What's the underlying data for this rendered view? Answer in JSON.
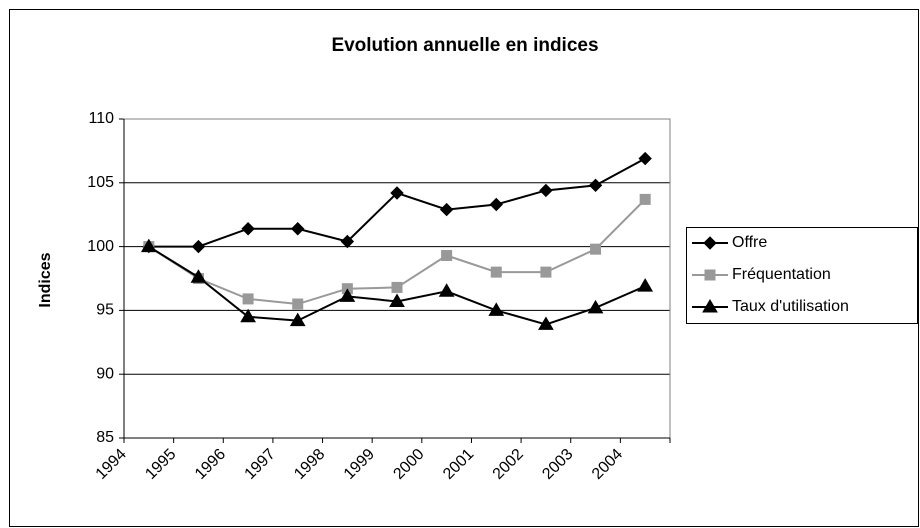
{
  "chart_data": {
    "type": "line",
    "title": "Evolution annuelle en indices",
    "y_label": "Indices",
    "categories": [
      "1994",
      "1995",
      "1996",
      "1997",
      "1998",
      "1999",
      "2000",
      "2001",
      "2002",
      "2003",
      "2004"
    ],
    "series": [
      {
        "name": "Offre",
        "color": "#000000",
        "marker": "diamond",
        "values": [
          100,
          100,
          101.4,
          101.4,
          100.4,
          104.2,
          102.9,
          103.3,
          104.4,
          104.8,
          106.9
        ]
      },
      {
        "name": "Fréquentation",
        "color": "#999999",
        "marker": "square",
        "values": [
          100,
          97.5,
          95.9,
          95.5,
          96.7,
          96.8,
          99.3,
          98.0,
          98.0,
          99.8,
          103.7
        ]
      },
      {
        "name": "Taux d'utilisation",
        "color": "#000000",
        "marker": "triangle",
        "values": [
          100,
          97.6,
          94.5,
          94.2,
          96.1,
          95.7,
          96.5,
          95.0,
          93.9,
          95.2,
          96.9
        ]
      }
    ],
    "ylim": [
      85,
      110
    ],
    "yticks": [
      85,
      90,
      95,
      100,
      105,
      110
    ],
    "grid": true,
    "legend": "right"
  }
}
